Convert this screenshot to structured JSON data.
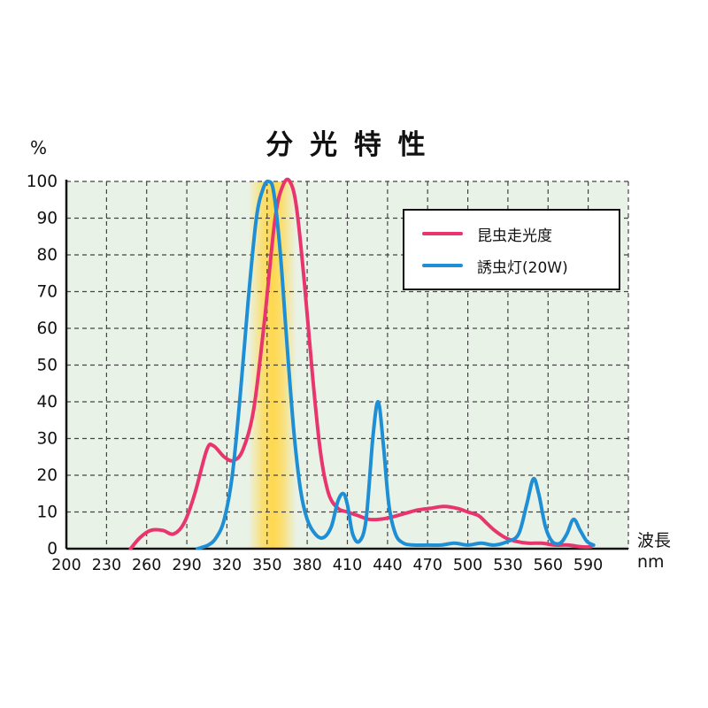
{
  "title": "分 光 特 性",
  "y_unit": "%",
  "x_unit_line1": "波長",
  "x_unit_line2": "nm",
  "colors": {
    "plot_background": "#e9f2e7",
    "grid": "#444444",
    "axis": "#111111",
    "highlight_band": "#ffd84d",
    "series_pink": "#e8356e",
    "series_blue": "#1e8fd5"
  },
  "chart_data": {
    "type": "line",
    "title": "分光特性",
    "xlabel": "波長 nm",
    "ylabel": "%",
    "xlim": [
      200,
      620
    ],
    "ylim": [
      0,
      100
    ],
    "x_ticks": [
      200,
      230,
      260,
      290,
      320,
      350,
      380,
      410,
      440,
      470,
      500,
      530,
      560,
      590
    ],
    "y_ticks": [
      0,
      10,
      20,
      30,
      40,
      50,
      60,
      70,
      80,
      90,
      100
    ],
    "grid": "dashed",
    "legend_position": "top-right",
    "highlight_band": {
      "x_start": 336,
      "x_end": 372,
      "color": "#ffd84d"
    },
    "series": [
      {
        "name": "昆虫走光度",
        "color": "#e8356e",
        "points": [
          [
            248,
            0
          ],
          [
            255,
            3
          ],
          [
            263,
            5
          ],
          [
            272,
            5
          ],
          [
            280,
            4
          ],
          [
            288,
            7
          ],
          [
            296,
            15
          ],
          [
            305,
            27
          ],
          [
            310,
            28
          ],
          [
            318,
            25
          ],
          [
            325,
            24
          ],
          [
            332,
            27
          ],
          [
            340,
            38
          ],
          [
            348,
            62
          ],
          [
            356,
            90
          ],
          [
            362,
            99
          ],
          [
            367,
            100
          ],
          [
            372,
            93
          ],
          [
            378,
            72
          ],
          [
            384,
            47
          ],
          [
            390,
            26
          ],
          [
            396,
            15
          ],
          [
            403,
            11
          ],
          [
            410,
            10
          ],
          [
            418,
            9
          ],
          [
            426,
            8
          ],
          [
            434,
            8
          ],
          [
            442,
            8.5
          ],
          [
            452,
            9.5
          ],
          [
            462,
            10.5
          ],
          [
            472,
            11
          ],
          [
            482,
            11.5
          ],
          [
            492,
            11
          ],
          [
            500,
            10
          ],
          [
            508,
            9
          ],
          [
            514,
            7
          ],
          [
            520,
            5
          ],
          [
            528,
            3
          ],
          [
            536,
            2
          ],
          [
            545,
            1.5
          ],
          [
            555,
            1.5
          ],
          [
            565,
            1
          ],
          [
            575,
            1
          ],
          [
            585,
            0.5
          ],
          [
            592,
            0.5
          ]
        ]
      },
      {
        "name": "誘虫灯(20W)",
        "color": "#1e8fd5",
        "points": [
          [
            298,
            0
          ],
          [
            306,
            1
          ],
          [
            312,
            3
          ],
          [
            318,
            8
          ],
          [
            324,
            20
          ],
          [
            330,
            42
          ],
          [
            336,
            68
          ],
          [
            342,
            90
          ],
          [
            347,
            98
          ],
          [
            351,
            100
          ],
          [
            355,
            97
          ],
          [
            360,
            80
          ],
          [
            365,
            55
          ],
          [
            370,
            32
          ],
          [
            375,
            16
          ],
          [
            380,
            8
          ],
          [
            386,
            4
          ],
          [
            392,
            3
          ],
          [
            398,
            6
          ],
          [
            403,
            13
          ],
          [
            407,
            15
          ],
          [
            410,
            12
          ],
          [
            414,
            4
          ],
          [
            419,
            2
          ],
          [
            424,
            8
          ],
          [
            429,
            30
          ],
          [
            433,
            40
          ],
          [
            437,
            28
          ],
          [
            441,
            12
          ],
          [
            446,
            4
          ],
          [
            452,
            1.5
          ],
          [
            460,
            1
          ],
          [
            470,
            1
          ],
          [
            480,
            1
          ],
          [
            490,
            1.5
          ],
          [
            500,
            1
          ],
          [
            510,
            1.5
          ],
          [
            520,
            1
          ],
          [
            530,
            2
          ],
          [
            538,
            4
          ],
          [
            544,
            12
          ],
          [
            549,
            19
          ],
          [
            553,
            15
          ],
          [
            558,
            6
          ],
          [
            563,
            2
          ],
          [
            569,
            1.5
          ],
          [
            574,
            4
          ],
          [
            579,
            8
          ],
          [
            584,
            5
          ],
          [
            589,
            2
          ],
          [
            594,
            1
          ]
        ]
      }
    ]
  }
}
